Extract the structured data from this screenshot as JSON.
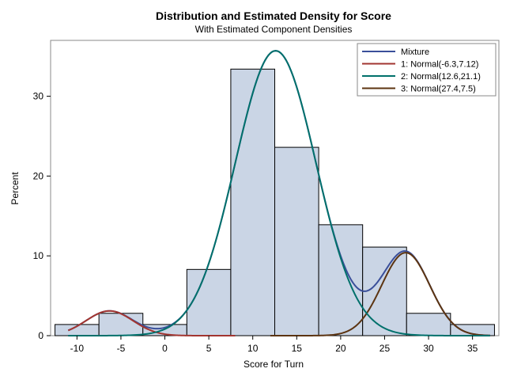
{
  "chart_data": {
    "type": "histogram",
    "title": "Distribution and Estimated Density for Score",
    "subtitle": "With Estimated Component Densities",
    "xlabel": "Score for Turn",
    "ylabel": "Percent",
    "xlim": [
      -13,
      38
    ],
    "ylim": [
      0,
      37
    ],
    "x_ticks": [
      -10,
      -5,
      0,
      5,
      10,
      15,
      20,
      25,
      30,
      35
    ],
    "y_ticks": [
      0,
      10,
      20,
      30
    ],
    "bins": [
      {
        "start": -12.5,
        "end": -7.5,
        "value": 1.4
      },
      {
        "start": -7.5,
        "end": -2.5,
        "value": 2.8
      },
      {
        "start": -2.5,
        "end": 2.5,
        "value": 1.4
      },
      {
        "start": 2.5,
        "end": 7.5,
        "value": 8.3
      },
      {
        "start": 7.5,
        "end": 12.5,
        "value": 33.4
      },
      {
        "start": 12.5,
        "end": 17.5,
        "value": 23.6
      },
      {
        "start": 17.5,
        "end": 22.5,
        "value": 13.9
      },
      {
        "start": 22.5,
        "end": 27.5,
        "value": 11.1
      },
      {
        "start": 27.5,
        "end": 32.5,
        "value": 2.8
      },
      {
        "start": 32.5,
        "end": 37.5,
        "value": 1.4
      }
    ],
    "bar_color": "#cad5e5",
    "series": [
      {
        "name": "Mixture",
        "color": "#3a4f9a",
        "x_range": [
          -11,
          37
        ]
      },
      {
        "name": "1: Normal(-6.3,7.12)",
        "color": "#a23530",
        "mean": -6.3,
        "sd": 2.67,
        "peak": 3.1,
        "x_range": [
          -11,
          8
        ]
      },
      {
        "name": "2: Normal(12.6,21.1)",
        "color": "#00706b",
        "mean": 12.6,
        "sd": 4.59,
        "peak": 35.7,
        "x_range": [
          -11,
          37
        ]
      },
      {
        "name": "3: Normal(27.4,7.5)",
        "color": "#5c3411",
        "mean": 27.4,
        "sd": 2.74,
        "peak": 10.4,
        "x_range": [
          12,
          37
        ]
      }
    ],
    "legend_position": "top-right"
  }
}
